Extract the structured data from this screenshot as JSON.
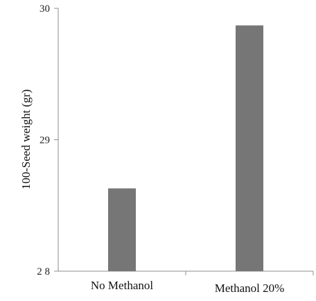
{
  "chart_data": {
    "type": "bar",
    "title": "",
    "xlabel": "",
    "ylabel": "100-Seed weight (gr)",
    "categories": [
      "No Methanol",
      "Methanol 20%"
    ],
    "values": [
      28.63,
      29.87
    ],
    "ylim": [
      28,
      30
    ],
    "yticks": [
      "2 8",
      "29",
      "30"
    ],
    "ytick_values": [
      28,
      29,
      30
    ],
    "grid": false,
    "legend": "none",
    "bar_color": "#767676",
    "axis_color": "#8c8c8c"
  }
}
